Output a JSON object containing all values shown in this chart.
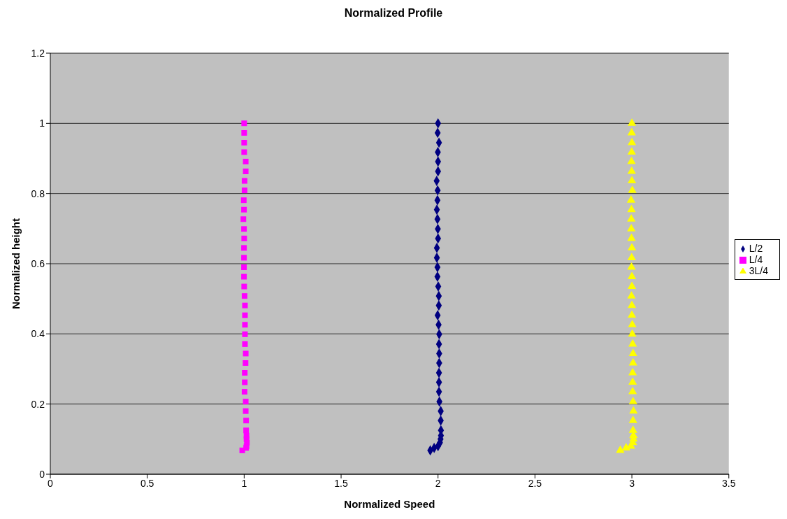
{
  "chart_data": {
    "type": "scatter",
    "title": "Normalized Profile",
    "xlabel": "Normalized Speed",
    "ylabel": "Normalized height",
    "xlim": [
      0,
      3.5
    ],
    "xticks": [
      0,
      0.5,
      1,
      1.5,
      2,
      2.5,
      3,
      3.5
    ],
    "ylim": [
      0,
      1.2
    ],
    "yticks": [
      0,
      0.2,
      0.4,
      0.6,
      0.8,
      1,
      1.2
    ],
    "grid": "y",
    "legend": "right",
    "series": [
      {
        "name": "L/2",
        "color": "#000080",
        "marker": "diamond",
        "x": [
          2.0,
          1.998,
          2.005,
          1.999,
          2.0,
          2.0,
          1.993,
          1.998,
          1.997,
          1.994,
          1.997,
          1.999,
          2.0,
          1.994,
          1.994,
          1.997,
          1.997,
          2.001,
          2.004,
          2.004,
          1.998,
          2.003,
          2.006,
          2.005,
          2.006,
          2.006,
          2.005,
          2.005,
          2.005,
          2.007,
          2.014,
          2.014,
          2.015,
          2.015,
          2.013,
          2.01,
          2.0,
          1.98,
          1.96
        ],
        "values": [
          1,
          0.973,
          0.945,
          0.918,
          0.891,
          0.863,
          0.836,
          0.809,
          0.781,
          0.754,
          0.727,
          0.699,
          0.672,
          0.645,
          0.617,
          0.59,
          0.563,
          0.535,
          0.508,
          0.481,
          0.453,
          0.426,
          0.399,
          0.371,
          0.344,
          0.317,
          0.289,
          0.262,
          0.235,
          0.207,
          0.18,
          0.153,
          0.125,
          0.11,
          0.1,
          0.09,
          0.08,
          0.075,
          0.068
        ]
      },
      {
        "name": "L/4",
        "color": "#ff00ff",
        "marker": "square",
        "x": [
          1.0,
          1.0,
          1.0,
          1.0,
          1.008,
          1.008,
          1.002,
          1.002,
          0.998,
          0.999,
          0.996,
          0.999,
          1.0,
          0.999,
          0.999,
          0.999,
          0.999,
          1.0,
          1.002,
          1.004,
          1.004,
          1.004,
          1.004,
          1.004,
          1.008,
          1.007,
          1.003,
          1.003,
          1.002,
          1.008,
          1.008,
          1.01,
          1.01,
          1.012,
          1.012,
          1.014,
          1.012,
          1.01,
          0.99
        ],
        "values": [
          1,
          0.973,
          0.945,
          0.918,
          0.891,
          0.863,
          0.836,
          0.809,
          0.781,
          0.754,
          0.727,
          0.699,
          0.672,
          0.645,
          0.617,
          0.59,
          0.563,
          0.535,
          0.508,
          0.481,
          0.453,
          0.426,
          0.399,
          0.371,
          0.344,
          0.317,
          0.289,
          0.262,
          0.235,
          0.207,
          0.18,
          0.153,
          0.125,
          0.11,
          0.1,
          0.09,
          0.08,
          0.075,
          0.068
        ]
      },
      {
        "name": "3L/4",
        "color": "#ffff00",
        "marker": "triangle",
        "x": [
          3.0,
          2.999,
          3.0,
          2.999,
          2.998,
          2.999,
          3.0,
          3.002,
          2.996,
          2.998,
          2.997,
          2.997,
          2.998,
          3.0,
          2.999,
          2.998,
          3.0,
          3.0,
          2.998,
          3.0,
          3.0,
          3.002,
          3.002,
          3.004,
          3.006,
          3.006,
          3.004,
          3.004,
          3.004,
          3.006,
          3.008,
          3.006,
          3.006,
          3.008,
          3.008,
          3.005,
          2.995,
          2.97,
          2.94
        ],
        "values": [
          1,
          0.973,
          0.945,
          0.918,
          0.891,
          0.863,
          0.836,
          0.809,
          0.781,
          0.754,
          0.727,
          0.699,
          0.672,
          0.645,
          0.617,
          0.59,
          0.563,
          0.535,
          0.508,
          0.481,
          0.453,
          0.426,
          0.399,
          0.371,
          0.344,
          0.317,
          0.289,
          0.262,
          0.235,
          0.207,
          0.18,
          0.153,
          0.125,
          0.11,
          0.1,
          0.09,
          0.08,
          0.075,
          0.068
        ]
      }
    ]
  }
}
